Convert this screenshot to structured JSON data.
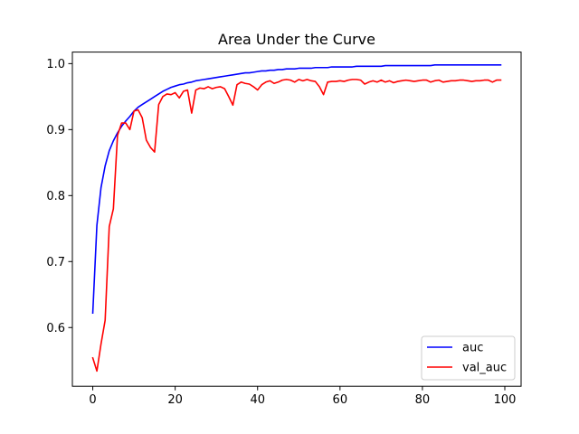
{
  "chart_data": {
    "type": "line",
    "title": "Area Under the Curve",
    "xlabel": "",
    "ylabel": "",
    "xlim": [
      -4.95,
      103.95
    ],
    "ylim": [
      0.511,
      1.0175
    ],
    "xticks": [
      0,
      20,
      40,
      60,
      80,
      100
    ],
    "yticks": [
      0.6,
      0.7,
      0.8,
      0.9,
      1.0
    ],
    "xtick_labels": [
      "0",
      "20",
      "40",
      "60",
      "80",
      "100"
    ],
    "ytick_labels": [
      "0.6",
      "0.7",
      "0.8",
      "0.9",
      "1.0"
    ],
    "grid": false,
    "legend_position": "lower right",
    "x": [
      0,
      1,
      2,
      3,
      4,
      5,
      6,
      7,
      8,
      9,
      10,
      11,
      12,
      13,
      14,
      15,
      16,
      17,
      18,
      19,
      20,
      21,
      22,
      23,
      24,
      25,
      26,
      27,
      28,
      29,
      30,
      31,
      32,
      33,
      34,
      35,
      36,
      37,
      38,
      39,
      40,
      41,
      42,
      43,
      44,
      45,
      46,
      47,
      48,
      49,
      50,
      51,
      52,
      53,
      54,
      55,
      56,
      57,
      58,
      59,
      60,
      61,
      62,
      63,
      64,
      65,
      66,
      67,
      68,
      69,
      70,
      71,
      72,
      73,
      74,
      75,
      76,
      77,
      78,
      79,
      80,
      81,
      82,
      83,
      84,
      85,
      86,
      87,
      88,
      89,
      90,
      91,
      92,
      93,
      94,
      95,
      96,
      97,
      98,
      99
    ],
    "series": [
      {
        "name": "auc",
        "color": "#0000ff",
        "values": [
          0.622,
          0.755,
          0.812,
          0.845,
          0.868,
          0.883,
          0.895,
          0.905,
          0.913,
          0.92,
          0.928,
          0.934,
          0.938,
          0.942,
          0.946,
          0.95,
          0.954,
          0.958,
          0.961,
          0.964,
          0.966,
          0.968,
          0.969,
          0.971,
          0.972,
          0.974,
          0.975,
          0.976,
          0.977,
          0.978,
          0.979,
          0.98,
          0.981,
          0.982,
          0.983,
          0.984,
          0.985,
          0.986,
          0.986,
          0.987,
          0.988,
          0.989,
          0.989,
          0.99,
          0.99,
          0.991,
          0.991,
          0.992,
          0.992,
          0.992,
          0.993,
          0.993,
          0.993,
          0.993,
          0.994,
          0.994,
          0.994,
          0.994,
          0.995,
          0.995,
          0.995,
          0.995,
          0.995,
          0.995,
          0.996,
          0.996,
          0.996,
          0.996,
          0.996,
          0.996,
          0.996,
          0.997,
          0.997,
          0.997,
          0.997,
          0.997,
          0.997,
          0.997,
          0.997,
          0.997,
          0.997,
          0.997,
          0.997,
          0.998,
          0.998,
          0.998,
          0.998,
          0.998,
          0.998,
          0.998,
          0.998,
          0.998,
          0.998,
          0.998,
          0.998,
          0.998,
          0.998,
          0.998,
          0.998,
          0.998
        ]
      },
      {
        "name": "val_auc",
        "color": "#ff0000",
        "values": [
          0.554,
          0.534,
          0.575,
          0.611,
          0.753,
          0.78,
          0.891,
          0.91,
          0.91,
          0.9,
          0.928,
          0.93,
          0.918,
          0.884,
          0.873,
          0.866,
          0.938,
          0.95,
          0.954,
          0.953,
          0.956,
          0.948,
          0.958,
          0.96,
          0.925,
          0.96,
          0.963,
          0.962,
          0.965,
          0.962,
          0.964,
          0.965,
          0.962,
          0.95,
          0.937,
          0.968,
          0.972,
          0.97,
          0.969,
          0.965,
          0.96,
          0.968,
          0.972,
          0.974,
          0.97,
          0.972,
          0.975,
          0.976,
          0.975,
          0.972,
          0.976,
          0.974,
          0.976,
          0.974,
          0.973,
          0.965,
          0.953,
          0.972,
          0.973,
          0.973,
          0.974,
          0.973,
          0.975,
          0.976,
          0.976,
          0.975,
          0.969,
          0.972,
          0.974,
          0.972,
          0.975,
          0.972,
          0.974,
          0.971,
          0.973,
          0.974,
          0.975,
          0.974,
          0.973,
          0.974,
          0.975,
          0.975,
          0.972,
          0.974,
          0.975,
          0.972,
          0.973,
          0.974,
          0.974,
          0.975,
          0.975,
          0.974,
          0.973,
          0.974,
          0.974,
          0.975,
          0.975,
          0.972,
          0.975,
          0.975
        ]
      }
    ]
  }
}
